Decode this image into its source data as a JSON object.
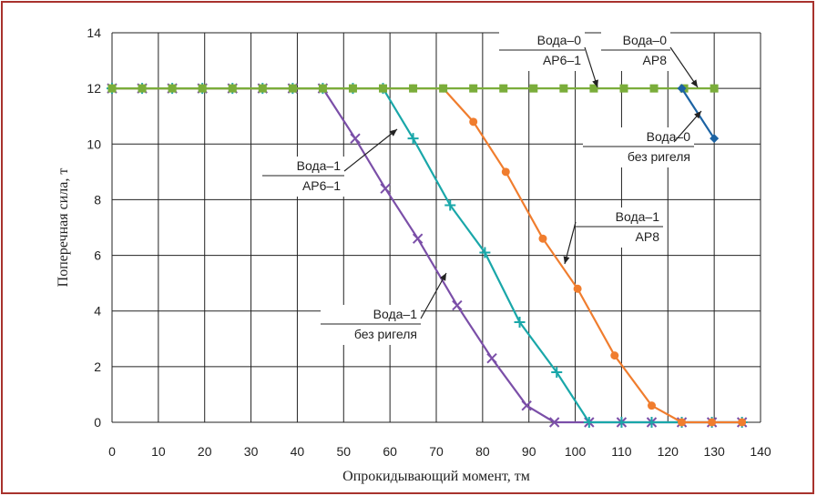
{
  "chart_data": {
    "type": "line",
    "xlabel": "Опрокидывающий момент, тм",
    "ylabel": "Поперечная сила, т",
    "xlim": [
      0,
      140
    ],
    "ylim": [
      0,
      14
    ],
    "x_ticks": [
      0,
      10,
      20,
      30,
      40,
      50,
      60,
      70,
      80,
      90,
      100,
      110,
      120,
      130,
      140
    ],
    "y_ticks": [
      0,
      2,
      4,
      6,
      8,
      10,
      12,
      14
    ],
    "grid": true,
    "legend": "callouts",
    "series": [
      {
        "color": "#7b4fa8",
        "marker": "x",
        "points": [
          [
            0,
            12
          ],
          [
            6.5,
            12
          ],
          [
            13,
            12
          ],
          [
            19.5,
            12
          ],
          [
            26,
            12
          ],
          [
            32.5,
            12
          ],
          [
            39,
            12
          ],
          [
            45.5,
            12
          ],
          [
            52.5,
            10.2
          ],
          [
            59,
            8.4
          ],
          [
            66,
            6.6
          ],
          [
            74.5,
            4.2
          ],
          [
            82,
            2.3
          ],
          [
            89.5,
            0.6
          ],
          [
            95.5,
            0
          ],
          [
            103,
            0
          ],
          [
            110,
            0
          ],
          [
            116.5,
            0
          ],
          [
            123,
            0
          ],
          [
            129.5,
            0
          ],
          [
            136,
            0
          ]
        ]
      },
      {
        "color": "#1aa7a9",
        "marker": "+",
        "points": [
          [
            0,
            12
          ],
          [
            6.5,
            12
          ],
          [
            13,
            12
          ],
          [
            19.5,
            12
          ],
          [
            26,
            12
          ],
          [
            32.5,
            12
          ],
          [
            39,
            12
          ],
          [
            45.5,
            12
          ],
          [
            52,
            12
          ],
          [
            58.5,
            12
          ],
          [
            65,
            10.2
          ],
          [
            73,
            7.8
          ],
          [
            80.5,
            6.1
          ],
          [
            88,
            3.6
          ],
          [
            96,
            1.8
          ],
          [
            103,
            0
          ],
          [
            110,
            0
          ],
          [
            116.5,
            0
          ],
          [
            123,
            0
          ],
          [
            129.5,
            0
          ],
          [
            136,
            0
          ]
        ]
      },
      {
        "color": "#f07d2e",
        "marker": "circle",
        "points": [
          [
            0,
            12
          ],
          [
            6.5,
            12
          ],
          [
            13,
            12
          ],
          [
            19.5,
            12
          ],
          [
            26,
            12
          ],
          [
            32.5,
            12
          ],
          [
            39,
            12
          ],
          [
            45.5,
            12
          ],
          [
            52,
            12
          ],
          [
            58.5,
            12
          ],
          [
            65,
            12
          ],
          [
            71.5,
            12
          ],
          [
            78,
            10.8
          ],
          [
            85,
            9.0
          ],
          [
            93,
            6.6
          ],
          [
            100.5,
            4.8
          ],
          [
            108.5,
            2.4
          ],
          [
            116.5,
            0.6
          ],
          [
            123,
            0
          ],
          [
            129.5,
            0
          ],
          [
            136,
            0
          ]
        ]
      },
      {
        "color": "#7aad3a",
        "marker": "square",
        "points": [
          [
            0,
            12
          ],
          [
            6.5,
            12
          ],
          [
            13,
            12
          ],
          [
            19.5,
            12
          ],
          [
            26,
            12
          ],
          [
            32.5,
            12
          ],
          [
            39,
            12
          ],
          [
            45.5,
            12
          ],
          [
            52,
            12
          ],
          [
            58.5,
            12
          ],
          [
            65,
            12
          ],
          [
            71.5,
            12
          ],
          [
            78,
            12
          ],
          [
            84.5,
            12
          ],
          [
            91,
            12
          ],
          [
            97.5,
            12
          ],
          [
            104,
            12
          ],
          [
            110.5,
            12
          ],
          [
            117,
            12
          ],
          [
            123.5,
            12
          ],
          [
            130,
            12
          ]
        ]
      },
      {
        "color": "#1c63a3",
        "marker": "diamond",
        "points": [
          [
            123,
            12
          ],
          [
            130,
            10.2
          ]
        ]
      }
    ],
    "annotations": [
      {
        "lines": [
          "Вода–1",
          "АР6–1"
        ],
        "color": "#1aa7a9"
      },
      {
        "lines": [
          "Вода–1",
          "без ригеля"
        ],
        "color": "#7b4fa8"
      },
      {
        "lines": [
          "Вода–0",
          "АР6–1"
        ],
        "color": "#7aad3a"
      },
      {
        "lines": [
          "Вода–0",
          "АР8"
        ],
        "color": "#1c63a3"
      },
      {
        "lines": [
          "Вода–0",
          "без ригеля"
        ],
        "color": "#1c63a3"
      },
      {
        "lines": [
          "Вода–1",
          "АР8"
        ],
        "color": "#f07d2e"
      }
    ]
  }
}
